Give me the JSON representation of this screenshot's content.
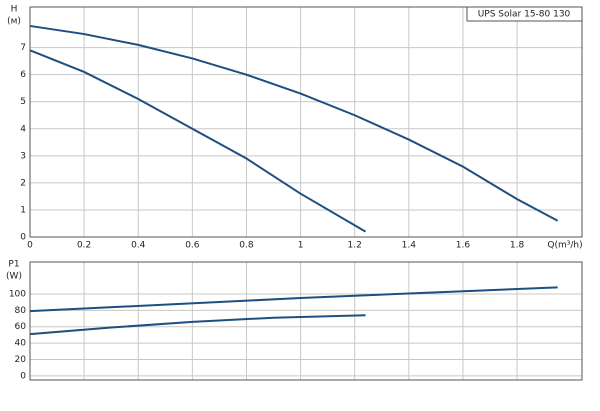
{
  "chart_data": [
    {
      "type": "line",
      "title": "UPS Solar 15-80 130",
      "ylabel": "H",
      "yunit": "(м)",
      "xlabel": "Q(m³/h)",
      "xlim": [
        0,
        2.04
      ],
      "xticks": [
        0,
        0.2,
        0.4,
        0.6,
        0.8,
        1,
        1.2,
        1.4,
        1.6,
        1.8
      ],
      "ylim": [
        0,
        8.5
      ],
      "yticks": [
        0,
        1,
        2,
        3,
        4,
        5,
        6,
        7
      ],
      "grid": true,
      "series": [
        {
          "color": "#1d4f80",
          "x": [
            0,
            0.2,
            0.4,
            0.6,
            0.8,
            1.0,
            1.2,
            1.4,
            1.6,
            1.8,
            1.95
          ],
          "values": [
            7.8,
            7.5,
            7.1,
            6.6,
            6.0,
            5.3,
            4.5,
            3.6,
            2.6,
            1.4,
            0.6
          ]
        },
        {
          "color": "#1d4f80",
          "x": [
            0,
            0.2,
            0.4,
            0.6,
            0.8,
            1.0,
            1.24
          ],
          "values": [
            6.9,
            6.1,
            5.1,
            4.0,
            2.9,
            1.6,
            0.2
          ]
        }
      ]
    },
    {
      "type": "line",
      "ylabel": "P1",
      "yunit": "(W)",
      "ylim": [
        -5,
        139
      ],
      "yticks": [
        0,
        20,
        40,
        60,
        80,
        100
      ],
      "grid": true,
      "series": [
        {
          "color": "#1d4f80",
          "x": [
            0,
            0.5,
            1.0,
            1.5,
            1.95
          ],
          "values": [
            79,
            87,
            95,
            102,
            108
          ]
        },
        {
          "color": "#1d4f80",
          "x": [
            0,
            0.3,
            0.6,
            0.9,
            1.24
          ],
          "values": [
            51,
            59,
            66,
            71,
            74
          ]
        }
      ]
    }
  ]
}
